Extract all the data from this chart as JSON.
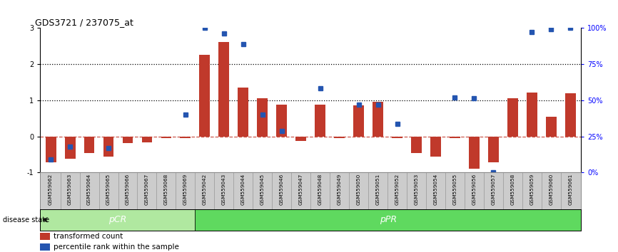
{
  "title": "GDS3721 / 237075_at",
  "samples": [
    "GSM559062",
    "GSM559063",
    "GSM559064",
    "GSM559065",
    "GSM559066",
    "GSM559067",
    "GSM559068",
    "GSM559069",
    "GSM559042",
    "GSM559043",
    "GSM559044",
    "GSM559045",
    "GSM559046",
    "GSM559047",
    "GSM559048",
    "GSM559049",
    "GSM559050",
    "GSM559051",
    "GSM559052",
    "GSM559053",
    "GSM559054",
    "GSM559055",
    "GSM559056",
    "GSM559057",
    "GSM559058",
    "GSM559059",
    "GSM559060",
    "GSM559061"
  ],
  "transformed_count": [
    -0.72,
    -0.62,
    -0.45,
    -0.55,
    -0.18,
    -0.17,
    -0.05,
    -0.05,
    2.25,
    2.6,
    1.35,
    1.05,
    0.88,
    -0.12,
    0.88,
    -0.05,
    0.85,
    0.95,
    -0.05,
    -0.45,
    -0.55,
    -0.05,
    -0.9,
    -0.72,
    1.05,
    1.22,
    0.55,
    1.2
  ],
  "percentile_rank_y": [
    -0.64,
    -0.28,
    null,
    -0.32,
    null,
    null,
    null,
    0.6,
    3.0,
    2.85,
    2.55,
    0.6,
    0.15,
    null,
    1.32,
    null,
    0.88,
    0.88,
    0.35,
    null,
    null,
    1.08,
    1.05,
    -1.0,
    null,
    2.88,
    2.95,
    3.0
  ],
  "pCR_count": 8,
  "bar_color": "#c0392b",
  "dot_color": "#2455b0",
  "background_color": "#ffffff",
  "zero_line_color": "#c0392b",
  "ylim": [
    -1,
    3
  ],
  "pCR_color": "#b0e8a0",
  "pPR_color": "#5fd95f",
  "label_area_color": "#cccccc",
  "label_border_color": "#888888"
}
